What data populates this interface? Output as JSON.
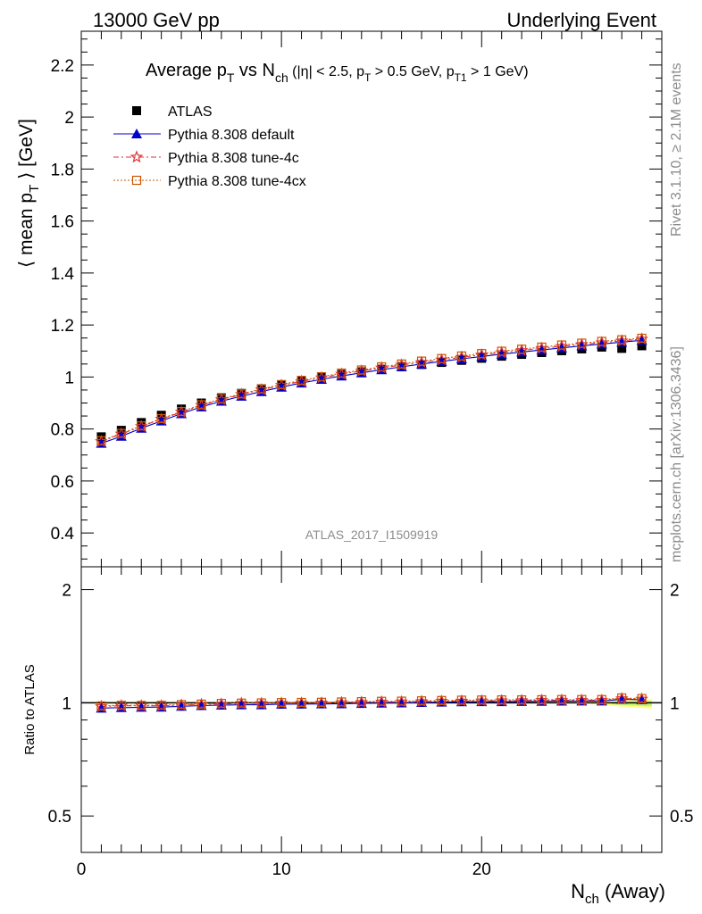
{
  "header": {
    "left": "13000 GeV pp",
    "right": "Underlying Event"
  },
  "side": {
    "rivet": "Rivet 3.1.10, ≥ 2.1M events",
    "mcplots": "mcplots.cern.ch [arXiv:1306.3436]"
  },
  "chart_data": [
    {
      "type": "scatter",
      "title": "Average p_T vs N_ch (|η| < 2.5, p_T > 0.5 GeV, p_T1 > 1 GeV)",
      "title_parts": {
        "main": "Average p",
        "main_sub": "T",
        "vs": " vs N",
        "vs_sub": "ch",
        "cuts1": " (|η| < 2.5, p",
        "cuts1_sub": "T",
        "cuts2": " > 0.5 GeV, p",
        "cuts2_sub": "T1",
        "cuts3": " > 1 GeV)"
      },
      "ylabel": "⟨ mean p_T ⟩ [GeV]",
      "ylabel_parts": {
        "pre": "⟨ mean p",
        "sub": "T",
        "post": " ⟩ [GeV]"
      },
      "xlabel": "N_ch (Away)",
      "xlabel_parts": {
        "pre": "N",
        "sub": "ch",
        "post": " (Away)"
      },
      "watermark": "ATLAS_2017_I1509919",
      "xlim": [
        0,
        29
      ],
      "ylim": [
        0.27,
        2.33
      ],
      "yticks": [
        0.4,
        0.6,
        0.8,
        1.0,
        1.2,
        1.4,
        1.6,
        1.8,
        2.0,
        2.2
      ],
      "ytick_labels": [
        "0.4",
        "0.6",
        "0.8",
        "1",
        "1.2",
        "1.4",
        "1.6",
        "1.8",
        "2",
        "2.2"
      ],
      "xticks": [
        0,
        10,
        20
      ],
      "xtick_labels": [
        "0",
        "10",
        "20"
      ],
      "legend_position": "top-left",
      "x": [
        1,
        2,
        3,
        4,
        5,
        6,
        7,
        8,
        9,
        10,
        11,
        12,
        13,
        14,
        15,
        16,
        17,
        18,
        19,
        20,
        21,
        22,
        23,
        24,
        25,
        26,
        27,
        28
      ],
      "series": [
        {
          "name": "ATLAS",
          "color": "#000000",
          "marker": "square-filled",
          "values": [
            0.77,
            0.795,
            0.825,
            0.853,
            0.877,
            0.9,
            0.92,
            0.937,
            0.955,
            0.97,
            0.985,
            0.998,
            1.01,
            1.02,
            1.03,
            1.04,
            1.048,
            1.056,
            1.064,
            1.072,
            1.08,
            1.087,
            1.094,
            1.101,
            1.108,
            1.115,
            1.11,
            1.12
          ]
        },
        {
          "name": "Pythia 8.308 default",
          "color": "#0000cc",
          "marker": "triangle-filled",
          "values": [
            0.745,
            0.772,
            0.803,
            0.831,
            0.859,
            0.885,
            0.907,
            0.926,
            0.944,
            0.961,
            0.977,
            0.991,
            1.004,
            1.016,
            1.028,
            1.039,
            1.05,
            1.06,
            1.07,
            1.079,
            1.088,
            1.096,
            1.104,
            1.112,
            1.12,
            1.127,
            1.134,
            1.141
          ]
        },
        {
          "name": "Pythia 8.308 tune-4c",
          "color": "#dd3333",
          "marker": "star",
          "values": [
            0.752,
            0.781,
            0.81,
            0.838,
            0.865,
            0.891,
            0.913,
            0.933,
            0.951,
            0.968,
            0.983,
            0.997,
            1.011,
            1.023,
            1.035,
            1.046,
            1.056,
            1.066,
            1.076,
            1.085,
            1.094,
            1.102,
            1.11,
            1.118,
            1.125,
            1.132,
            1.139,
            1.146
          ]
        },
        {
          "name": "Pythia 8.308 tune-4cx",
          "color": "#cc5500",
          "marker": "square-open",
          "values": [
            0.755,
            0.783,
            0.812,
            0.84,
            0.867,
            0.893,
            0.916,
            0.935,
            0.954,
            0.971,
            0.987,
            1.001,
            1.015,
            1.027,
            1.039,
            1.05,
            1.061,
            1.071,
            1.081,
            1.09,
            1.099,
            1.107,
            1.115,
            1.123,
            1.13,
            1.137,
            1.143,
            1.149
          ]
        }
      ]
    },
    {
      "type": "scatter",
      "ylabel": "Ratio to ATLAS",
      "ylim": [
        0.4,
        2.3
      ],
      "ylog": true,
      "yticks": [
        0.5,
        1,
        2
      ],
      "ytick_labels": [
        "0.5",
        "1",
        "2"
      ],
      "band_color": "#ffff66",
      "x": [
        1,
        2,
        3,
        4,
        5,
        6,
        7,
        8,
        9,
        10,
        11,
        12,
        13,
        14,
        15,
        16,
        17,
        18,
        19,
        20,
        21,
        22,
        23,
        24,
        25,
        26,
        27,
        28
      ],
      "series": [
        {
          "name": "Pythia 8.308 default",
          "values": [
            0.968,
            0.971,
            0.973,
            0.974,
            0.979,
            0.983,
            0.986,
            0.988,
            0.988,
            0.991,
            0.992,
            0.993,
            0.994,
            0.996,
            0.998,
            0.999,
            1.002,
            1.004,
            1.006,
            1.007,
            1.007,
            1.008,
            1.009,
            1.01,
            1.011,
            1.011,
            1.022,
            1.019
          ]
        },
        {
          "name": "Pythia 8.308 tune-4c",
          "values": [
            0.977,
            0.982,
            0.982,
            0.982,
            0.986,
            0.99,
            0.992,
            0.996,
            0.996,
            0.998,
            0.998,
            0.999,
            1.001,
            1.003,
            1.005,
            1.006,
            1.008,
            1.01,
            1.011,
            1.012,
            1.013,
            1.014,
            1.015,
            1.016,
            1.015,
            1.015,
            1.026,
            1.023
          ]
        },
        {
          "name": "Pythia 8.308 tune-4cx",
          "values": [
            0.981,
            0.985,
            0.984,
            0.985,
            0.989,
            0.992,
            0.996,
            0.998,
            0.999,
            1.001,
            1.002,
            1.003,
            1.005,
            1.007,
            1.009,
            1.01,
            1.012,
            1.014,
            1.016,
            1.017,
            1.018,
            1.018,
            1.019,
            1.02,
            1.02,
            1.02,
            1.03,
            1.026
          ]
        }
      ]
    }
  ]
}
